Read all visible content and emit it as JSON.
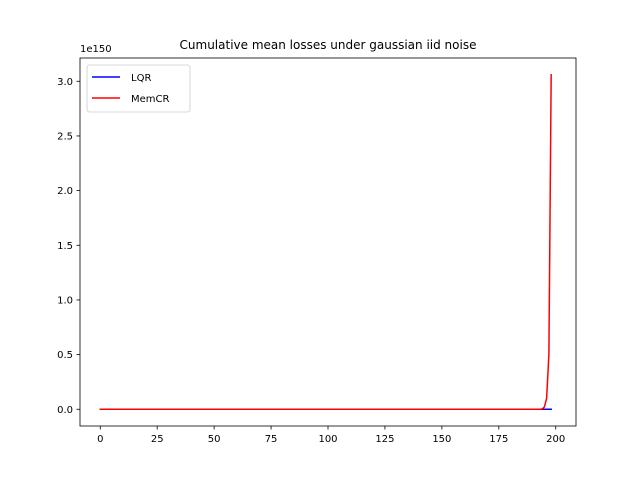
{
  "chart_data": {
    "type": "line",
    "title": "Cumulative mean losses under gaussian iid noise",
    "xlabel": "",
    "ylabel": "",
    "y_offset_label": "1e150",
    "y_scale_exponent": 150,
    "xlim": [
      -8.9,
      208.9
    ],
    "ylim": [
      -0.153,
      3.213
    ],
    "x_ticks": [
      0,
      25,
      50,
      75,
      100,
      125,
      150,
      175,
      200
    ],
    "y_ticks": [
      0.0,
      0.5,
      1.0,
      1.5,
      2.0,
      2.5,
      3.0
    ],
    "x_tick_labels": [
      "0",
      "25",
      "50",
      "75",
      "100",
      "125",
      "150",
      "175",
      "200"
    ],
    "y_tick_labels": [
      "0.0",
      "0.5",
      "1.0",
      "1.5",
      "2.0",
      "2.5",
      "3.0"
    ],
    "legend_position": "top-left",
    "grid": false,
    "series": [
      {
        "name": "LQR",
        "color": "#0000ff",
        "x": [
          0,
          198
        ],
        "values": [
          0,
          0
        ]
      },
      {
        "name": "MemCR",
        "color": "#ff0000",
        "x": [
          0,
          190,
          193,
          194,
          195,
          196,
          197,
          198
        ],
        "values": [
          0,
          0,
          0.0005,
          0.003,
          0.02,
          0.1,
          0.5,
          3.06
        ]
      }
    ]
  }
}
